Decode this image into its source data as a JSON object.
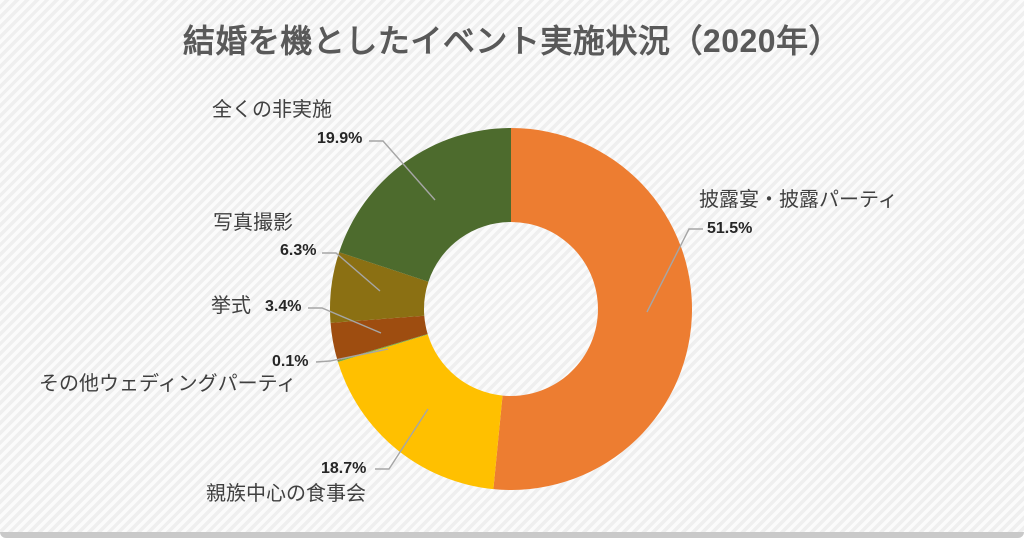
{
  "title": "結婚を機としたイベント実施状況（2020年）",
  "chart_data": {
    "type": "pie",
    "subtype": "donut",
    "title": "結婚を機としたイベント実施状況（2020年）",
    "year": "2020年",
    "legend_position": "none",
    "label_style": "outside-callouts-with-leader-lines",
    "start_angle_deg": 0,
    "direction": "clockwise",
    "hole_ratio": 0.48,
    "unit": "%",
    "segments": [
      {
        "label": "披露宴・披露パーティ",
        "value": 51.5,
        "display": "51.5%",
        "color": "#ED7D31"
      },
      {
        "label": "親族中心の食事会",
        "value": 18.7,
        "display": "18.7%",
        "color": "#FFC000"
      },
      {
        "label": "その他ウェディングパーティ",
        "value": 0.1,
        "display": "0.1%",
        "color": "#70AD47"
      },
      {
        "label": "挙式",
        "value": 3.4,
        "display": "3.4%",
        "color": "#9E4D10"
      },
      {
        "label": "写真撮影",
        "value": 6.3,
        "display": "6.3%",
        "color": "#8B7013"
      },
      {
        "label": "全くの非実施",
        "value": 19.9,
        "display": "19.9%",
        "color": "#4D6B2D"
      }
    ]
  },
  "style": {
    "title_color": "#595959",
    "label_color": "#404040",
    "percent_color": "#262626",
    "leader_line_color": "#A6A6A6",
    "background_base": "#fbfbfb",
    "background_stripe": "#efefef",
    "bottom_edge_color": "#c9c9c9"
  }
}
